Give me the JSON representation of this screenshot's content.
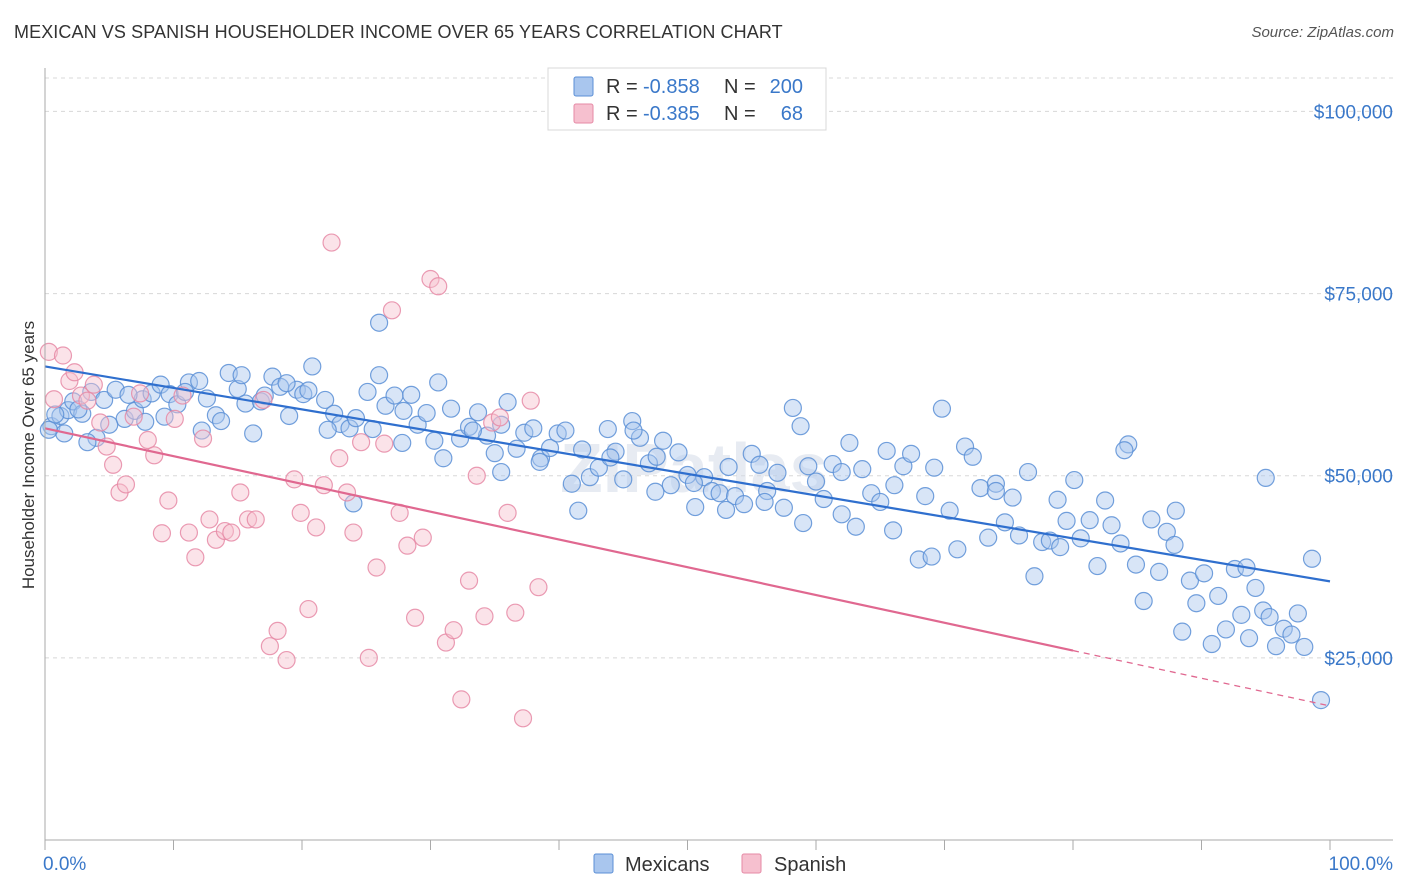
{
  "title": "MEXICAN VS SPANISH HOUSEHOLDER INCOME OVER 65 YEARS CORRELATION CHART",
  "source": "Source: ZipAtlas.com",
  "watermark": "ZIPatlas",
  "colors": {
    "mexicans_fill": "#a9c6ee",
    "mexicans_stroke": "#5b8fd6",
    "mexicans_line": "#2f6fce",
    "spanish_fill": "#f6c0cf",
    "spanish_stroke": "#e68aa6",
    "spanish_line": "#e06890",
    "value_text": "#3a78c9",
    "grid": "#d8d8d8"
  },
  "legend_top": [
    {
      "r_label": "R =",
      "r_value": "-0.858",
      "n_label": "N =",
      "n_value": "200"
    },
    {
      "r_label": "R =",
      "r_value": "-0.385",
      "n_label": "N =",
      "n_value": "68"
    }
  ],
  "chart_data": {
    "type": "scatter",
    "title": "MEXICAN VS SPANISH HOUSEHOLDER INCOME OVER 65 YEARS CORRELATION CHART",
    "xlabel": "",
    "ylabel": "Householder Income Over 65 years",
    "xlim": [
      0,
      100
    ],
    "ylim": [
      0,
      105000
    ],
    "x_tick_labels": [
      "0.0%",
      "100.0%"
    ],
    "y_ticks": [
      25000,
      50000,
      75000,
      100000
    ],
    "y_tick_labels": [
      "$25,000",
      "$50,000",
      "$75,000",
      "$100,000"
    ],
    "grid": true,
    "legend_position": "bottom-center",
    "series": [
      {
        "name": "Mexicans",
        "trend": {
          "x": [
            0,
            100
          ],
          "y": [
            65000,
            35500
          ]
        },
        "points": [
          [
            0.5,
            56800
          ],
          [
            1.2,
            58200
          ],
          [
            1.8,
            59000
          ],
          [
            2.2,
            60200
          ],
          [
            2.9,
            58500
          ],
          [
            3.6,
            61500
          ],
          [
            4.0,
            55200
          ],
          [
            4.6,
            60400
          ],
          [
            5.5,
            61800
          ],
          [
            6.2,
            57800
          ],
          [
            7.0,
            58900
          ],
          [
            7.6,
            60500
          ],
          [
            8.3,
            61300
          ],
          [
            9.0,
            62500
          ],
          [
            9.7,
            61200
          ],
          [
            10.3,
            59800
          ],
          [
            11.2,
            62800
          ],
          [
            12.0,
            63000
          ],
          [
            12.6,
            60600
          ],
          [
            13.3,
            58300
          ],
          [
            14.3,
            64100
          ],
          [
            15.0,
            61900
          ],
          [
            15.6,
            59900
          ],
          [
            16.2,
            55800
          ],
          [
            16.8,
            60200
          ],
          [
            17.7,
            63600
          ],
          [
            18.3,
            62200
          ],
          [
            19.0,
            58200
          ],
          [
            19.6,
            61800
          ],
          [
            20.1,
            61200
          ],
          [
            20.8,
            65000
          ],
          [
            21.8,
            60400
          ],
          [
            22.5,
            58500
          ],
          [
            23.0,
            57100
          ],
          [
            23.7,
            56500
          ],
          [
            24.2,
            57900
          ],
          [
            25.1,
            61500
          ],
          [
            26.0,
            63800
          ],
          [
            26.5,
            59600
          ],
          [
            27.2,
            61000
          ],
          [
            27.8,
            54500
          ],
          [
            28.5,
            61100
          ],
          [
            29.0,
            57000
          ],
          [
            29.7,
            58600
          ],
          [
            30.3,
            54800
          ],
          [
            31.0,
            52400
          ],
          [
            31.6,
            59200
          ],
          [
            32.3,
            55100
          ],
          [
            33.0,
            56700
          ],
          [
            33.7,
            58700
          ],
          [
            34.4,
            55500
          ],
          [
            35.0,
            53100
          ],
          [
            35.5,
            57000
          ],
          [
            36.0,
            60100
          ],
          [
            36.7,
            53700
          ],
          [
            37.3,
            55900
          ],
          [
            38.0,
            56500
          ],
          [
            38.6,
            52400
          ],
          [
            39.3,
            53800
          ],
          [
            39.9,
            55800
          ],
          [
            40.5,
            56200
          ],
          [
            41.0,
            48900
          ],
          [
            41.8,
            53600
          ],
          [
            42.4,
            49800
          ],
          [
            43.1,
            51100
          ],
          [
            43.8,
            56400
          ],
          [
            44.4,
            53300
          ],
          [
            45.0,
            49500
          ],
          [
            45.7,
            57500
          ],
          [
            46.3,
            55200
          ],
          [
            47.0,
            51700
          ],
          [
            47.6,
            52600
          ],
          [
            48.1,
            54800
          ],
          [
            48.7,
            48700
          ],
          [
            49.3,
            53200
          ],
          [
            50.0,
            50100
          ],
          [
            50.6,
            45700
          ],
          [
            51.3,
            49800
          ],
          [
            51.9,
            47900
          ],
          [
            52.5,
            47600
          ],
          [
            53.2,
            51200
          ],
          [
            53.7,
            47200
          ],
          [
            54.4,
            46100
          ],
          [
            55.0,
            53000
          ],
          [
            55.6,
            51500
          ],
          [
            56.2,
            47900
          ],
          [
            57.0,
            50400
          ],
          [
            57.5,
            45600
          ],
          [
            58.2,
            59300
          ],
          [
            58.8,
            56800
          ],
          [
            59.4,
            51300
          ],
          [
            60.0,
            49200
          ],
          [
            60.6,
            46800
          ],
          [
            61.3,
            51600
          ],
          [
            62.0,
            44700
          ],
          [
            62.6,
            54500
          ],
          [
            63.1,
            43000
          ],
          [
            63.6,
            50900
          ],
          [
            64.3,
            47600
          ],
          [
            65.0,
            46400
          ],
          [
            65.5,
            53400
          ],
          [
            66.1,
            48700
          ],
          [
            66.8,
            51300
          ],
          [
            67.4,
            53000
          ],
          [
            68.0,
            38500
          ],
          [
            68.5,
            47200
          ],
          [
            69.2,
            51100
          ],
          [
            69.8,
            59200
          ],
          [
            70.4,
            45200
          ],
          [
            71.0,
            39900
          ],
          [
            71.6,
            54000
          ],
          [
            72.2,
            52600
          ],
          [
            72.8,
            48300
          ],
          [
            73.4,
            41500
          ],
          [
            74.0,
            48900
          ],
          [
            74.7,
            43600
          ],
          [
            75.3,
            47000
          ],
          [
            75.8,
            41800
          ],
          [
            76.5,
            50500
          ],
          [
            77.0,
            36200
          ],
          [
            77.6,
            40900
          ],
          [
            78.2,
            41100
          ],
          [
            78.8,
            46700
          ],
          [
            79.5,
            43800
          ],
          [
            80.1,
            49400
          ],
          [
            80.6,
            41400
          ],
          [
            81.3,
            43900
          ],
          [
            81.9,
            37600
          ],
          [
            82.5,
            46600
          ],
          [
            83.0,
            43200
          ],
          [
            83.7,
            40700
          ],
          [
            84.3,
            54300
          ],
          [
            84.9,
            37800
          ],
          [
            85.5,
            32800
          ],
          [
            86.1,
            44000
          ],
          [
            86.7,
            36800
          ],
          [
            87.3,
            42300
          ],
          [
            87.9,
            40500
          ],
          [
            88.5,
            28600
          ],
          [
            89.1,
            35600
          ],
          [
            89.6,
            32500
          ],
          [
            90.2,
            36600
          ],
          [
            90.8,
            26900
          ],
          [
            91.3,
            33500
          ],
          [
            91.9,
            28900
          ],
          [
            92.6,
            37200
          ],
          [
            93.1,
            30900
          ],
          [
            93.7,
            27700
          ],
          [
            94.2,
            34600
          ],
          [
            94.8,
            31500
          ],
          [
            95.3,
            30600
          ],
          [
            95.8,
            26600
          ],
          [
            96.4,
            29000
          ],
          [
            97.0,
            28200
          ],
          [
            97.5,
            31100
          ],
          [
            98.0,
            26500
          ],
          [
            98.6,
            38600
          ],
          [
            99.3,
            19200
          ],
          [
            95.0,
            49700
          ],
          [
            93.5,
            37400
          ],
          [
            88.0,
            45200
          ],
          [
            84.0,
            53500
          ],
          [
            79.0,
            40200
          ],
          [
            74.0,
            47900
          ],
          [
            69.0,
            38900
          ],
          [
            66.0,
            42500
          ],
          [
            62.0,
            50500
          ],
          [
            59.0,
            43500
          ],
          [
            56.0,
            46400
          ],
          [
            53.0,
            45300
          ],
          [
            50.5,
            49000
          ],
          [
            47.5,
            47800
          ],
          [
            44.0,
            52500
          ],
          [
            41.5,
            45200
          ],
          [
            38.5,
            51900
          ],
          [
            35.5,
            50500
          ],
          [
            33.3,
            56200
          ],
          [
            30.6,
            62800
          ],
          [
            27.9,
            58900
          ],
          [
            25.5,
            56400
          ],
          [
            24.0,
            46200
          ],
          [
            22.0,
            56300
          ],
          [
            20.5,
            61700
          ],
          [
            18.8,
            62700
          ],
          [
            17.1,
            61000
          ],
          [
            15.3,
            63800
          ],
          [
            13.7,
            57500
          ],
          [
            12.2,
            56200
          ],
          [
            10.9,
            61500
          ],
          [
            9.3,
            58100
          ],
          [
            7.8,
            57400
          ],
          [
            6.5,
            61100
          ],
          [
            5.0,
            57000
          ],
          [
            3.3,
            54600
          ],
          [
            2.6,
            59100
          ],
          [
            1.5,
            55800
          ],
          [
            0.8,
            58400
          ],
          [
            0.3,
            56300
          ],
          [
            26.0,
            71000
          ],
          [
            45.8,
            56200
          ]
        ]
      },
      {
        "name": "Spanish",
        "trend": {
          "x": [
            0,
            80
          ],
          "y": [
            56500,
            26000
          ]
        },
        "trend_dashed": {
          "x": [
            80,
            100
          ],
          "y": [
            26000,
            18400
          ]
        },
        "points": [
          [
            0.3,
            67000
          ],
          [
            0.7,
            60500
          ],
          [
            1.4,
            66500
          ],
          [
            1.9,
            63000
          ],
          [
            2.3,
            64200
          ],
          [
            2.8,
            61000
          ],
          [
            3.3,
            60300
          ],
          [
            3.8,
            62500
          ],
          [
            4.3,
            57300
          ],
          [
            4.8,
            54000
          ],
          [
            5.3,
            51500
          ],
          [
            5.8,
            47700
          ],
          [
            6.3,
            48800
          ],
          [
            6.9,
            58100
          ],
          [
            7.4,
            61300
          ],
          [
            8.0,
            54900
          ],
          [
            8.5,
            52800
          ],
          [
            9.1,
            42100
          ],
          [
            9.6,
            46600
          ],
          [
            10.1,
            57800
          ],
          [
            10.7,
            61000
          ],
          [
            11.2,
            42200
          ],
          [
            11.7,
            38800
          ],
          [
            12.3,
            55100
          ],
          [
            12.8,
            44000
          ],
          [
            13.3,
            41200
          ],
          [
            14.0,
            42400
          ],
          [
            14.5,
            42200
          ],
          [
            15.2,
            47700
          ],
          [
            15.8,
            44000
          ],
          [
            16.4,
            44000
          ],
          [
            17.0,
            60400
          ],
          [
            17.5,
            26600
          ],
          [
            18.1,
            28700
          ],
          [
            18.8,
            24700
          ],
          [
            19.4,
            49500
          ],
          [
            19.9,
            44900
          ],
          [
            20.5,
            31700
          ],
          [
            21.1,
            42900
          ],
          [
            21.7,
            48700
          ],
          [
            22.3,
            82000
          ],
          [
            22.9,
            52400
          ],
          [
            23.5,
            47700
          ],
          [
            24.0,
            42200
          ],
          [
            24.6,
            54600
          ],
          [
            25.2,
            25000
          ],
          [
            25.8,
            37400
          ],
          [
            26.4,
            54400
          ],
          [
            27.0,
            72700
          ],
          [
            27.6,
            44900
          ],
          [
            28.2,
            40400
          ],
          [
            28.8,
            30500
          ],
          [
            29.4,
            41500
          ],
          [
            30.0,
            77000
          ],
          [
            30.6,
            76000
          ],
          [
            31.2,
            27100
          ],
          [
            31.8,
            28800
          ],
          [
            32.4,
            19300
          ],
          [
            33.0,
            35600
          ],
          [
            33.6,
            50000
          ],
          [
            34.2,
            30700
          ],
          [
            34.8,
            57300
          ],
          [
            35.4,
            58000
          ],
          [
            36.0,
            44900
          ],
          [
            36.6,
            31200
          ],
          [
            37.2,
            16700
          ],
          [
            37.8,
            60300
          ],
          [
            38.4,
            34700
          ]
        ]
      }
    ]
  },
  "axis": {
    "ylabel": "Householder Income Over 65 years",
    "x_min_label": "0.0%",
    "x_max_label": "100.0%"
  },
  "legend_bottom": {
    "items": [
      "Mexicans",
      "Spanish"
    ]
  }
}
